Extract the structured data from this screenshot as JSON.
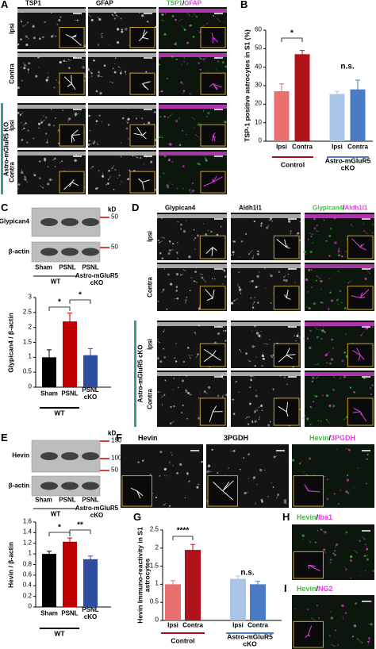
{
  "figure": {
    "A": {
      "letter": "A",
      "columns": [
        [
          "TSP1"
        ],
        [
          "GFAP"
        ],
        [
          "TSP1",
          "/",
          "GFAP"
        ]
      ],
      "rows": [
        "Ipsi",
        "Contra",
        "Ipsi",
        "Contra"
      ],
      "group": "Astro-mGluR5 KO"
    },
    "B": {
      "letter": "B"
    },
    "C": {
      "letter": "C",
      "bands": [
        "Glypican4",
        "β-actin"
      ],
      "kd": "kD",
      "markers": [
        "50",
        "50"
      ],
      "lanes": [
        "Sham",
        "PSNL",
        "PSNL"
      ],
      "wt": "WT",
      "ko": "Astro-mGluR5 cKO"
    },
    "D": {
      "letter": "D",
      "columns": [
        [
          "Glypican4"
        ],
        [
          "Aldh1l1"
        ],
        [
          "Glypican4",
          "/",
          "Aldh1l1"
        ]
      ],
      "rows": [
        "Ipsi",
        "Contra",
        "Ipsi",
        "Contra"
      ],
      "group": "Astro-mGluR5 cKO"
    },
    "E": {
      "letter": "E",
      "bands": [
        "Hevin",
        "β-actin"
      ],
      "kd": "kD",
      "markers": [
        "150",
        "100",
        "50"
      ],
      "lanes": [
        "Sham",
        "PSNL",
        "PSNL"
      ],
      "wt": "WT",
      "ko": "Astro-mGluR5 cKO"
    },
    "F": {
      "letter": "F",
      "columns": [
        [
          "Hevin"
        ],
        [
          "3PGDH"
        ],
        [
          "Hevin",
          "/",
          "3PGDH"
        ]
      ]
    },
    "G": {
      "letter": "G"
    },
    "H": {
      "letter": "H",
      "title": [
        "Hevin",
        "/",
        "Iba1"
      ]
    },
    "I": {
      "letter": "I",
      "title": [
        "Hevin",
        "/",
        "NG2"
      ]
    }
  },
  "chart_data": [
    {
      "type": "bar",
      "ylabel": "TSP-1 positive astrocytes in S1 (%)",
      "categories": [
        "Ipsi",
        "Contra",
        "Ipsi",
        "Contra"
      ],
      "values": [
        27,
        47,
        25.5,
        28
      ],
      "errors": [
        4,
        2,
        1.5,
        5
      ],
      "colors": [
        "#e8706f",
        "#b0141b",
        "#a8c4e6",
        "#4a7bc4"
      ],
      "ylim": [
        0,
        60
      ],
      "yticks": [
        0,
        10,
        20,
        30,
        40,
        50,
        60
      ],
      "annotations": [
        "*",
        "n.s."
      ],
      "groups": [
        {
          "name": "Control",
          "color": "#a01018"
        },
        {
          "name": "Astro-mGluR5 cKO",
          "color": "#4a7bc4"
        }
      ]
    },
    {
      "type": "bar",
      "ylabel": "Glypican4 / β-actin",
      "categories": [
        "Sham",
        "PSNL",
        "PSNL cKO"
      ],
      "values": [
        1.0,
        2.2,
        1.07
      ],
      "errors": [
        0.25,
        0.28,
        0.22
      ],
      "colors": [
        "#000000",
        "#c00000",
        "#2f4d9e"
      ],
      "ylim": [
        0,
        3
      ],
      "yticks": [
        0,
        0.5,
        1,
        1.5,
        2,
        2.5,
        3
      ],
      "annotations": [
        "*",
        "*"
      ],
      "groups": [
        {
          "name": "WT",
          "color": "#000000"
        }
      ]
    },
    {
      "type": "bar",
      "ylabel": "Hevin / β-actin",
      "categories": [
        "Sham",
        "PSNL",
        "PSNL cKO"
      ],
      "values": [
        1.0,
        1.23,
        0.9
      ],
      "errors": [
        0.05,
        0.07,
        0.06
      ],
      "colors": [
        "#000000",
        "#c00000",
        "#2f4d9e"
      ],
      "ylim": [
        0,
        1.6
      ],
      "yticks": [
        0,
        0.2,
        0.4,
        0.6,
        0.8,
        1,
        1.2,
        1.4,
        1.6
      ],
      "annotations": [
        "*",
        "**"
      ],
      "groups": [
        {
          "name": "WT",
          "color": "#000000"
        }
      ]
    },
    {
      "type": "bar",
      "ylabel": "Hevin Immuno-reactivity in S1 astrocytes",
      "categories": [
        "Ipsi",
        "Contra",
        "Ipsi",
        "Contra"
      ],
      "values": [
        1.0,
        1.95,
        1.15,
        1.0
      ],
      "errors": [
        0.1,
        0.15,
        0.08,
        0.08
      ],
      "colors": [
        "#e8706f",
        "#b0141b",
        "#a8c4e6",
        "#4a7bc4"
      ],
      "ylim": [
        0,
        2.5
      ],
      "yticks": [
        0,
        0.5,
        1,
        1.5,
        2,
        2.5
      ],
      "annotations": [
        "****",
        "n.s."
      ],
      "groups": [
        {
          "name": "Control",
          "color": "#a01018"
        },
        {
          "name": "Astro-mGluR5 cKO",
          "color": "#4a7bc4"
        }
      ]
    }
  ]
}
